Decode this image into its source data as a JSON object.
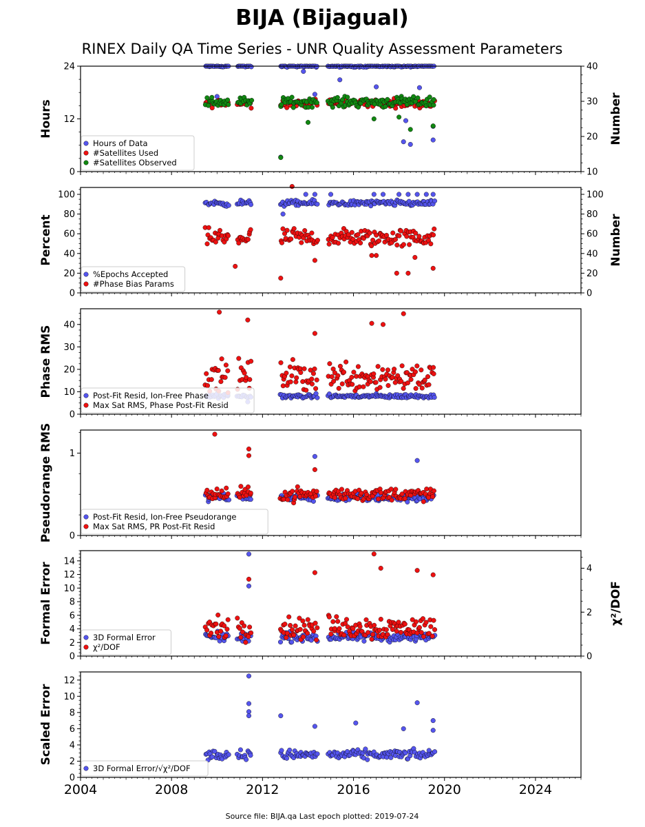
{
  "title": "BIJA (Bijagual)",
  "subtitle": "RINEX Daily QA Time Series - UNR Quality Assessment Parameters",
  "footer": "Source file: BIJA.qa Last epoch plotted: 2019-07-24",
  "colors": {
    "blue": "#5555ee",
    "red": "#ee1111",
    "green": "#118811",
    "edge": "#000000"
  },
  "chart_data": [
    {
      "type": "scatter",
      "ylabel": "Hours",
      "y2label": "Number",
      "ylim": [
        0,
        24
      ],
      "y2lim": [
        10,
        40
      ],
      "yticks": [
        0,
        12,
        24
      ],
      "y2ticks": [
        10,
        20,
        30,
        40
      ],
      "legend_position": "lower-left",
      "series": [
        {
          "name": "Hours of Data",
          "color": "blue",
          "axis": "left",
          "base": 24,
          "spread": 0.2,
          "outliers": [
            [
              2012.8,
              3.3
            ],
            [
              2013.8,
              22.8
            ],
            [
              2014.3,
              17.6
            ],
            [
              2015.4,
              20.9
            ],
            [
              2017.0,
              19.3
            ],
            [
              2018.2,
              6.8
            ],
            [
              2018.3,
              11.6
            ],
            [
              2018.5,
              6.2
            ],
            [
              2018.9,
              19.1
            ],
            [
              2019.5,
              7.2
            ],
            [
              2019.5,
              10.3
            ],
            [
              2010.0,
              17.1
            ]
          ]
        },
        {
          "name": "#Satellites Used",
          "color": "red",
          "axis": "right",
          "base": 29.5,
          "spread": 1.0,
          "outliers": []
        },
        {
          "name": "#Satellites Observed",
          "color": "green",
          "axis": "right",
          "base": 29.8,
          "spread": 1.2,
          "outliers": [
            [
              2012.8,
              14.0
            ],
            [
              2014.0,
              24.0
            ],
            [
              2016.9,
              25.0
            ],
            [
              2018.0,
              25.5
            ],
            [
              2018.5,
              22.0
            ],
            [
              2019.5,
              23.0
            ]
          ]
        }
      ]
    },
    {
      "type": "scatter",
      "ylabel": "Percent",
      "y2label": "Number",
      "ylim": [
        0,
        107
      ],
      "y2lim": [
        0,
        107
      ],
      "yticks": [
        0,
        20,
        40,
        60,
        80,
        100
      ],
      "y2ticks": [
        0,
        20,
        40,
        60,
        80,
        100
      ],
      "legend_position": "lower-left",
      "series": [
        {
          "name": "%Epochs Accepted",
          "color": "blue",
          "axis": "left",
          "base": 91,
          "spread": 2.5,
          "outliers": [
            [
              2013.9,
              100
            ],
            [
              2014.3,
              100
            ],
            [
              2015.0,
              100
            ],
            [
              2016.9,
              100
            ],
            [
              2017.3,
              100
            ],
            [
              2018.0,
              100
            ],
            [
              2018.4,
              100
            ],
            [
              2018.8,
              100
            ],
            [
              2019.2,
              100
            ],
            [
              2019.5,
              100
            ],
            [
              2012.9,
              80
            ]
          ]
        },
        {
          "name": "#Phase Bias Params",
          "color": "red",
          "axis": "right",
          "base": 56,
          "spread": 8,
          "outliers": [
            [
              2012.8,
              15
            ],
            [
              2013.3,
              108
            ],
            [
              2010.8,
              27
            ],
            [
              2014.3,
              33
            ],
            [
              2017.9,
              20
            ],
            [
              2018.4,
              20
            ],
            [
              2019.5,
              25
            ],
            [
              2017.0,
              38
            ],
            [
              2016.8,
              38
            ],
            [
              2018.7,
              36
            ]
          ]
        }
      ]
    },
    {
      "type": "scatter",
      "ylabel": "Phase RMS",
      "ylim": [
        0,
        47
      ],
      "yticks": [
        0,
        10,
        20,
        30,
        40
      ],
      "legend_position": "lower-left",
      "series": [
        {
          "name": "Post-Fit Resid, Ion-Free Phase",
          "color": "blue",
          "axis": "left",
          "base": 8,
          "spread": 0.8,
          "outliers": [
            [
              2011.35,
              5.5
            ]
          ]
        },
        {
          "name": "Max Sat RMS, Phase Post-Fit Resid",
          "color": "red",
          "axis": "left",
          "base": 17,
          "spread": 6,
          "outliers": [
            [
              2010.1,
              45.5
            ],
            [
              2011.35,
              42
            ],
            [
              2016.8,
              40.5
            ],
            [
              2017.3,
              40
            ],
            [
              2018.2,
              44.8
            ],
            [
              2014.3,
              36
            ]
          ]
        }
      ]
    },
    {
      "type": "scatter",
      "ylabel": "Pseudorange RMS",
      "ylim": [
        0,
        1.28
      ],
      "yticks": [
        0,
        1
      ],
      "legend_position": "lower-left",
      "series": [
        {
          "name": "Post-Fit Resid, Ion-Free Pseudorange",
          "color": "blue",
          "axis": "left",
          "base": 0.46,
          "spread": 0.04,
          "outliers": [
            [
              2014.3,
              0.96
            ],
            [
              2018.8,
              0.91
            ]
          ]
        },
        {
          "name": "Max Sat RMS, PR Post-Fit Resid",
          "color": "red",
          "axis": "left",
          "base": 0.5,
          "spread": 0.07,
          "outliers": [
            [
              2009.9,
              1.23
            ],
            [
              2011.4,
              1.05
            ],
            [
              2011.4,
              0.97
            ],
            [
              2014.3,
              0.8
            ]
          ]
        }
      ]
    },
    {
      "type": "scatter",
      "ylabel": "Formal Error",
      "y2label": "χ²/DOF",
      "ylim": [
        0,
        15.5
      ],
      "y2lim": [
        0,
        4.8
      ],
      "yticks": [
        0,
        2,
        4,
        6,
        8,
        10,
        12,
        14
      ],
      "y2ticks": [
        0,
        2,
        4
      ],
      "legend_position": "lower-left",
      "series": [
        {
          "name": "3D Formal Error",
          "color": "blue",
          "axis": "left",
          "base": 2.8,
          "spread": 0.6,
          "outliers": [
            [
              2011.4,
              15
            ],
            [
              2011.4,
              10.3
            ]
          ]
        },
        {
          "name": "χ²/DOF",
          "color": "red",
          "axis": "right",
          "base": 1.3,
          "spread": 0.45,
          "outliers": [
            [
              2016.9,
              4.65
            ],
            [
              2017.2,
              4.0
            ],
            [
              2014.3,
              3.8
            ],
            [
              2018.8,
              3.9
            ],
            [
              2011.4,
              3.5
            ],
            [
              2019.5,
              3.7
            ]
          ]
        }
      ]
    },
    {
      "type": "scatter",
      "ylabel": "Scaled Error",
      "ylim": [
        0,
        13
      ],
      "yticks": [
        0,
        2,
        4,
        6,
        8,
        10,
        12
      ],
      "legend_position": "lower-left",
      "series": [
        {
          "name": "3D Formal Error/√χ²/DOF",
          "color": "blue",
          "axis": "left",
          "base": 2.8,
          "spread": 0.5,
          "outliers": [
            [
              2011.4,
              12.5
            ],
            [
              2011.4,
              9.1
            ],
            [
              2011.4,
              8.1
            ],
            [
              2011.4,
              7.6
            ],
            [
              2012.8,
              7.6
            ],
            [
              2014.3,
              6.3
            ],
            [
              2016.1,
              6.7
            ],
            [
              2018.8,
              9.2
            ],
            [
              2019.5,
              7.0
            ],
            [
              2019.5,
              5.8
            ],
            [
              2018.2,
              6.0
            ]
          ]
        }
      ]
    }
  ],
  "x_axis": {
    "xlim": [
      2004,
      2026
    ],
    "xticks": [
      2004,
      2008,
      2012,
      2016,
      2020,
      2024
    ]
  },
  "data_segments": [
    [
      2009.5,
      2010.5
    ],
    [
      2010.9,
      2011.5
    ],
    [
      2012.8,
      2014.4
    ],
    [
      2014.9,
      2019.56
    ]
  ]
}
